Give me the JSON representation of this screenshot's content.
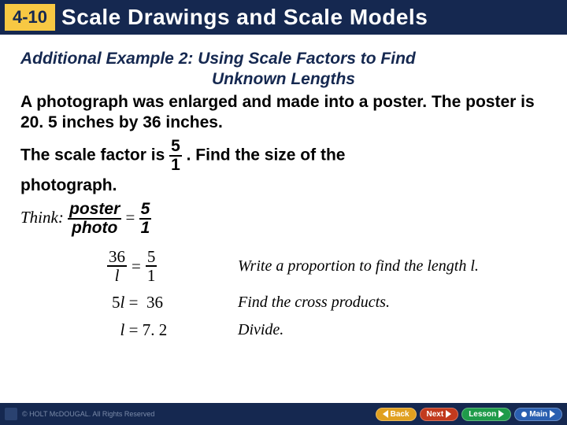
{
  "header": {
    "badge": "4-10",
    "title": "Scale Drawings and Scale Models"
  },
  "example": {
    "title_line1": "Additional Example 2: Using Scale Factors to Find",
    "title_line2": "Unknown Lengths",
    "para1": "A photograph was enlarged and made into a poster. The poster is 20. 5 inches by 36 inches.",
    "para2a": "The scale factor is",
    "para2b": ". Find the size of the",
    "para3": "photograph.",
    "sf_num": "5",
    "sf_den": "1"
  },
  "think": {
    "label": "Think:",
    "lhs_num": "poster",
    "lhs_den": "photo",
    "rhs_num": "5",
    "rhs_den": "1",
    "eq": "="
  },
  "steps": [
    {
      "lhs_num": "36",
      "lhs_den": "l",
      "eq": "=",
      "rhs_num": "5",
      "rhs_den": "1",
      "explain": "Write a proportion to find the length l."
    },
    {
      "math": "5l =  36",
      "explain": "Find the cross products."
    },
    {
      "math": "l = 7. 2",
      "explain": "Divide."
    }
  ],
  "footer": {
    "copyright": "© HOLT McDOUGAL. All Rights Reserved",
    "back": "Back",
    "next": "Next",
    "lesson": "Lesson",
    "main": "Main"
  },
  "colors": {
    "header_bg": "#152850",
    "badge_bg": "#f7c843",
    "btn_back": "#e0a020",
    "btn_next": "#c23a1e",
    "btn_lesson": "#1f9b4a",
    "btn_main": "#2a5fb0"
  }
}
